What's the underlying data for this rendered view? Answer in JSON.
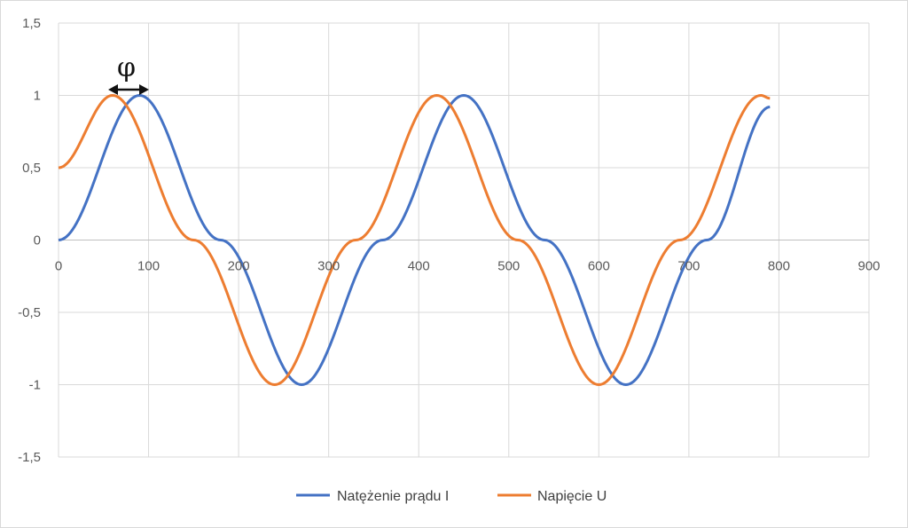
{
  "chart_data": {
    "type": "line",
    "xlim": [
      0,
      900
    ],
    "ylim": [
      -1.5,
      1.5
    ],
    "x_ticks": [
      "0",
      "100",
      "200",
      "300",
      "400",
      "500",
      "600",
      "700",
      "800",
      "900"
    ],
    "y_ticks": [
      "1,5",
      "1",
      "0,5",
      "0",
      "-0,5",
      "-1",
      "-1,5"
    ],
    "grid": true,
    "legend_position": "bottom",
    "annotation": "φ",
    "series": [
      {
        "name": "Natężenie prądu I",
        "color": "#4472C4",
        "x": [
          0,
          90,
          180,
          270,
          360,
          450,
          540,
          630,
          720,
          790
        ],
        "y": [
          0,
          1,
          0,
          -1,
          0,
          1,
          0,
          -1,
          0,
          0.92
        ]
      },
      {
        "name": "Napięcie U",
        "color": "#ED7D31",
        "x": [
          0,
          60,
          150,
          240,
          330,
          420,
          510,
          600,
          690,
          780,
          790
        ],
        "y": [
          0.5,
          1,
          0,
          -1,
          0,
          1,
          0,
          -1,
          0,
          1,
          0.98
        ]
      }
    ]
  }
}
